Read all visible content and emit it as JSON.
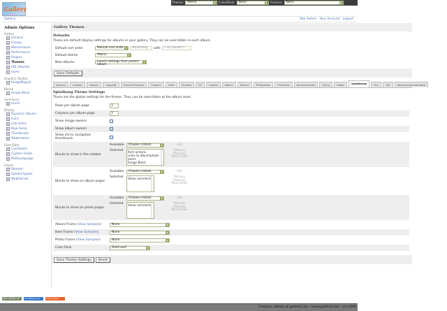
{
  "topbar": {
    "theme_label": "Theme:",
    "theme_value": "Matrix",
    "colorpack_label": "ColorPack:",
    "colorpack_value": "None",
    "frames_label": "Frames:",
    "frames_value": "None"
  },
  "breadcrumb": {
    "home": "Gallery",
    "links": [
      "Site Admin",
      "Your Account",
      "Logout"
    ]
  },
  "sidebar": {
    "title": "Admin Options",
    "sections": [
      {
        "label": "Gallery",
        "items": [
          "General",
          "Groups",
          "Maintenance",
          "Performance",
          "Plugins",
          "Themes",
          "URL Rewrite",
          "Users"
        ]
      },
      {
        "label": "Graphics Toolkits",
        "items": [
          "ImageMagick"
        ]
      },
      {
        "label": "Blocks",
        "items": [
          "Image Block"
        ]
      },
      {
        "label": "Commerce",
        "items": [
          "ecard"
        ]
      },
      {
        "label": "Display",
        "items": [
          "Dynamic Albums",
          "Icons",
          "Link Items",
          "New Items",
          "Thumbnails",
          "Watermarks"
        ]
      },
      {
        "label": "Extra Data",
        "items": [
          "Comments",
          "Custom Fields",
          "MultiLanguage"
        ]
      },
      {
        "label": "Import",
        "items": [
          "Remote",
          "Upload Applet",
          "Web/Server"
        ]
      }
    ],
    "active": "Themes"
  },
  "main": {
    "title": "Gallery Themes",
    "defaults": {
      "heading": "Defaults",
      "description": "These are default display settings for albums in your gallery. They can be overridden in each album.",
      "sort_label": "Default sort order",
      "sort_value": "Manual sort order",
      "sort_dir": "Ascending",
      "with_label": "with",
      "presort": "« no presort »",
      "theme_label": "Default theme",
      "theme_value": "Matrix",
      "new_albums_label": "New albums",
      "new_albums_value": "Inherit settings from parent album",
      "save": "Save Defaults"
    },
    "tabs": [
      "Ajaxian",
      "Carbon",
      "Classic",
      "Copyleft",
      "EclecticThreads",
      "Floatrix",
      "Fluid",
      "ForSale",
      "G2",
      "Hybrid",
      "Matrix",
      "Nature",
      "PGlightbox",
      "PGtheme",
      "RoundCorners",
      "Siriux",
      "Slider",
      "Splatbang",
      "Tint",
      "Tile",
      "WordpressEmbedded"
    ],
    "active_tab": "Splatbang",
    "theme": {
      "heading": "Splatbang Theme Settings",
      "description": "These are the global settings for the theme. They can be overridden at the album level.",
      "rows_label": "Rows per album page",
      "rows_value": "3",
      "cols_label": "Columns per album page",
      "cols_value": "3",
      "image_owners_label": "Show image owners",
      "image_owners": false,
      "album_owners_label": "Show album owners",
      "album_owners": true,
      "micro_label": "Show micro navigation thumbnails",
      "micro": false,
      "available_label": "Available",
      "selected_label": "Selected",
      "choose": "Choose a block",
      "add": "Add",
      "remove": "Remove",
      "up": "Move Up",
      "down": "Move Down",
      "sidebar_blocks_label": "Blocks to show in the sidebar",
      "sidebar_blocks": [
        "Item actions",
        "Links to album/photo peers",
        "Image Block"
      ],
      "album_blocks_label": "Blocks to show on album pages",
      "album_blocks": [
        "Show comments"
      ],
      "photo_blocks_label": "Blocks to show on photo pages",
      "photo_blocks": [
        "Show comments"
      ],
      "view_samples": "View Samples",
      "album_frame_label": "Album Frame",
      "album_frame": "None",
      "item_frame_label": "Item Frame",
      "item_frame": "None",
      "photo_frame_label": "Photo Frame",
      "photo_frame": "None",
      "colorpack_label": "Color Pack",
      "colorpack": "Gold Leaf",
      "save": "Save Theme Settings",
      "reset": "Reset"
    }
  },
  "badges": [
    "W3C XHTML 1.0",
    "G2 Gallery 2.2",
    "Help Gallery"
  ],
  "footer": "Contact: admin at gallery2.hu - www.gallery2.hu - (c) 2006"
}
